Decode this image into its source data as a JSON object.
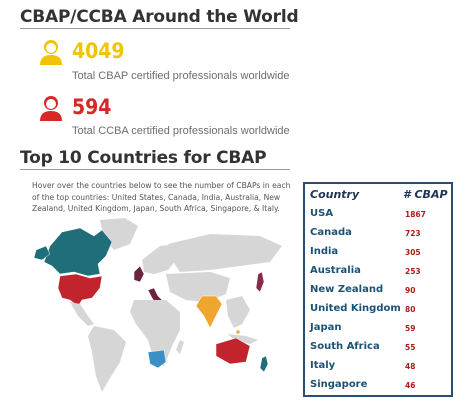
{
  "header": {
    "title": "CBAP/CCBA Around the World"
  },
  "stats": [
    {
      "icon": "person-icon",
      "color": "#f0c500",
      "number": "4049",
      "caption": "Total CBAP certified professionals worldwide"
    },
    {
      "icon": "person-icon",
      "color": "#d62828",
      "number": "594",
      "caption": "Total CCBA certified professionals worldwide"
    }
  ],
  "countries_section": {
    "title": "Top 10 Countries for CBAP",
    "hover_text": "Hover over the countries below to see the number of CBAPs in each of the top countries: United States, Canada, India, Australia, New Zealand, United Kingdom, Japan, South Africa, Singapore, & Italy."
  },
  "colors": {
    "usa": "#c1242c",
    "canada": "#1f6e7a",
    "india": "#f0a52e",
    "australia": "#c1242c",
    "uk": "#6b2340",
    "italy": "#6b2340",
    "south_africa": "#3a8fc4",
    "japan": "#8a2a4a",
    "new_zealand": "#1f6e7a",
    "land": "#d6d6d6"
  },
  "chart_data": {
    "type": "table",
    "columns": [
      "Country",
      "# CBAP"
    ],
    "rows": [
      {
        "country": "USA",
        "count": 1867
      },
      {
        "country": "Canada",
        "count": 723
      },
      {
        "country": "India",
        "count": 305
      },
      {
        "country": "Australia",
        "count": 253
      },
      {
        "country": "New Zealand",
        "count": 90
      },
      {
        "country": "United Kingdom",
        "count": 80
      },
      {
        "country": "Japan",
        "count": 59
      },
      {
        "country": "South Africa",
        "count": 55
      },
      {
        "country": "Italy",
        "count": 48
      },
      {
        "country": "Singapore",
        "count": 46
      }
    ]
  }
}
